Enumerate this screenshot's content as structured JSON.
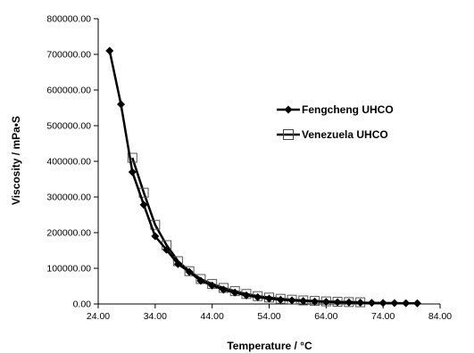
{
  "chart_data": {
    "type": "line",
    "title": "",
    "xlabel": "Temperature / °C",
    "ylabel": "Viscosity / mPa•S",
    "xlim": [
      24,
      84
    ],
    "ylim": [
      0,
      800000
    ],
    "x_ticks": [
      "24.00",
      "34.00",
      "44.00",
      "54.00",
      "64.00",
      "74.00",
      "84.00"
    ],
    "y_ticks": [
      "0.00",
      "100000.00",
      "200000.00",
      "300000.00",
      "400000.00",
      "500000.00",
      "600000.00",
      "700000.00",
      "800000.00"
    ],
    "legend_position": "center-right",
    "grid": false,
    "series": [
      {
        "name": "Fengcheng UHCO",
        "marker": "diamond",
        "color": "#000000",
        "x": [
          26,
          28,
          30,
          32,
          34,
          36,
          38,
          40,
          42,
          44,
          46,
          48,
          50,
          52,
          54,
          56,
          58,
          60,
          62,
          64,
          66,
          68,
          70,
          72,
          74,
          76,
          78,
          80
        ],
        "y": [
          710000,
          560000,
          370000,
          278000,
          190000,
          152000,
          112000,
          90000,
          65000,
          52000,
          40000,
          32000,
          24000,
          19000,
          15000,
          12000,
          10000,
          8500,
          7000,
          6000,
          5000,
          4300,
          3700,
          3200,
          2800,
          2400,
          2100,
          1800
        ]
      },
      {
        "name": "Venezuela UHCO",
        "marker": "square-open",
        "color": "#000000",
        "x": [
          30,
          32,
          34,
          36,
          38,
          40,
          42,
          44,
          46,
          48,
          50,
          52,
          54,
          56,
          58,
          60,
          62,
          64,
          66,
          68,
          70
        ],
        "y": [
          410000,
          312000,
          222000,
          165000,
          120000,
          92000,
          70000,
          56000,
          45000,
          36000,
          28000,
          22000,
          18000,
          14500,
          12000,
          10000,
          8500,
          7200,
          6200,
          5400,
          4800
        ]
      }
    ]
  }
}
